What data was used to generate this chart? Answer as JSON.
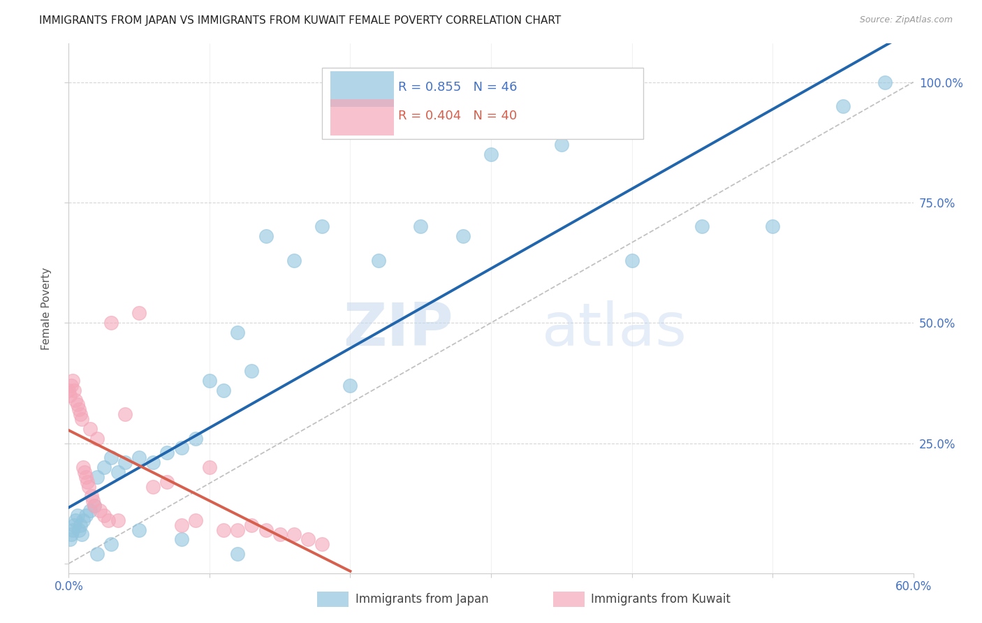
{
  "title": "IMMIGRANTS FROM JAPAN VS IMMIGRANTS FROM KUWAIT FEMALE POVERTY CORRELATION CHART",
  "source": "Source: ZipAtlas.com",
  "xlabel_japan": "Immigrants from Japan",
  "xlabel_kuwait": "Immigrants from Kuwait",
  "ylabel": "Female Poverty",
  "r_japan": 0.855,
  "n_japan": 46,
  "r_kuwait": 0.404,
  "n_kuwait": 40,
  "color_japan": "#92c5de",
  "color_kuwait": "#f4a7b9",
  "line_japan": "#2166ac",
  "line_kuwait": "#d6604d",
  "background": "#ffffff",
  "grid_color": "#cccccc",
  "watermark_zip": "ZIP",
  "watermark_atlas": "atlas",
  "xlim": [
    0.0,
    0.6
  ],
  "ylim": [
    -0.02,
    1.08
  ],
  "japan_x": [
    0.001,
    0.002,
    0.003,
    0.004,
    0.005,
    0.006,
    0.007,
    0.008,
    0.009,
    0.01,
    0.012,
    0.015,
    0.018,
    0.02,
    0.025,
    0.03,
    0.035,
    0.04,
    0.05,
    0.06,
    0.07,
    0.08,
    0.09,
    0.1,
    0.11,
    0.12,
    0.13,
    0.14,
    0.16,
    0.18,
    0.2,
    0.22,
    0.25,
    0.28,
    0.3,
    0.35,
    0.4,
    0.45,
    0.5,
    0.55,
    0.58,
    0.02,
    0.03,
    0.05,
    0.08,
    0.12
  ],
  "japan_y": [
    0.05,
    0.06,
    0.07,
    0.08,
    0.09,
    0.1,
    0.07,
    0.08,
    0.06,
    0.09,
    0.1,
    0.11,
    0.12,
    0.18,
    0.2,
    0.22,
    0.19,
    0.21,
    0.22,
    0.21,
    0.23,
    0.24,
    0.26,
    0.38,
    0.36,
    0.48,
    0.4,
    0.68,
    0.63,
    0.7,
    0.37,
    0.63,
    0.7,
    0.68,
    0.85,
    0.87,
    0.63,
    0.7,
    0.7,
    0.95,
    1.0,
    0.02,
    0.04,
    0.07,
    0.05,
    0.02
  ],
  "kuwait_x": [
    0.0,
    0.001,
    0.002,
    0.003,
    0.004,
    0.005,
    0.006,
    0.007,
    0.008,
    0.009,
    0.01,
    0.011,
    0.012,
    0.013,
    0.014,
    0.015,
    0.016,
    0.017,
    0.018,
    0.02,
    0.022,
    0.025,
    0.028,
    0.03,
    0.035,
    0.04,
    0.05,
    0.06,
    0.07,
    0.08,
    0.09,
    0.1,
    0.11,
    0.12,
    0.13,
    0.14,
    0.15,
    0.16,
    0.17,
    0.18
  ],
  "kuwait_y": [
    0.36,
    0.35,
    0.37,
    0.38,
    0.36,
    0.34,
    0.33,
    0.32,
    0.31,
    0.3,
    0.2,
    0.19,
    0.18,
    0.17,
    0.16,
    0.28,
    0.14,
    0.13,
    0.12,
    0.26,
    0.11,
    0.1,
    0.09,
    0.5,
    0.09,
    0.31,
    0.52,
    0.16,
    0.17,
    0.08,
    0.09,
    0.2,
    0.07,
    0.07,
    0.08,
    0.07,
    0.06,
    0.06,
    0.05,
    0.04
  ]
}
